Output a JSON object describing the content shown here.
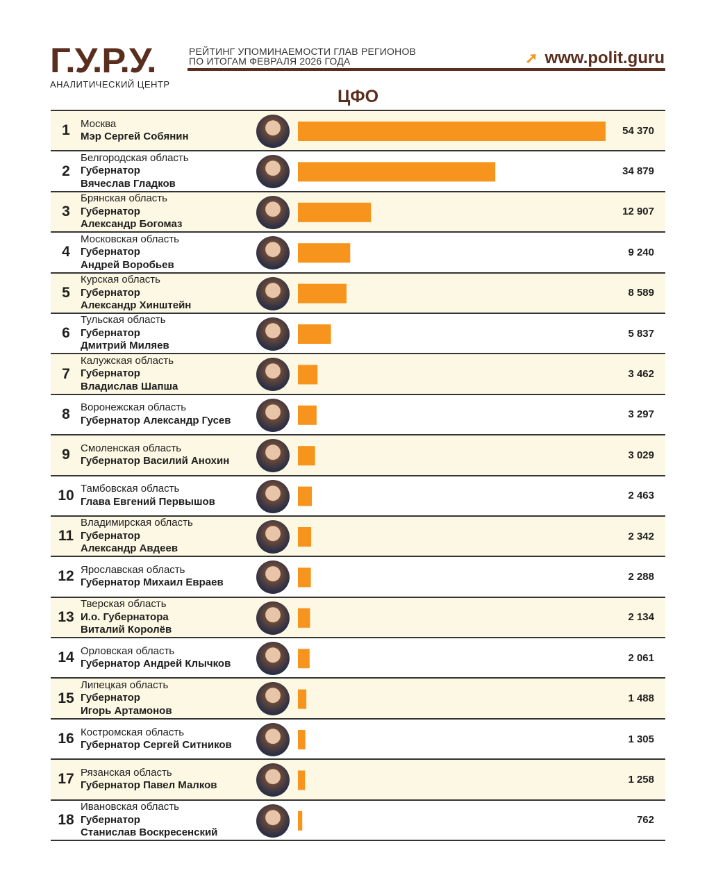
{
  "header": {
    "logo": "Г.У.Р.У.",
    "logo_sub": "АНАЛИТИЧЕСКИЙ ЦЕНТР",
    "subtitle_1": "РЕЙТИНГ УПОМИНАЕМОСТИ ГЛАВ РЕГИОНОВ",
    "subtitle_2": "ПО ИТОГАМ ФЕВРАЛЯ 2026 ГОДА",
    "site": "www.polit.guru",
    "region": "ЦФО"
  },
  "colors": {
    "bar": "#f7941d",
    "brand": "#5a2e1e",
    "stripe": "#fdf8e3"
  },
  "rows": [
    {
      "rank": "1",
      "region": "Москва",
      "lines": [
        "Мэр Сергей Собянин"
      ],
      "value": "54 370"
    },
    {
      "rank": "2",
      "region": "Белгородская область",
      "lines": [
        "Губернатор",
        "Вячеслав Гладков"
      ],
      "value": "34 879"
    },
    {
      "rank": "3",
      "region": "Брянская область",
      "lines": [
        "Губернатор",
        "Александр Богомаз"
      ],
      "value": "12 907"
    },
    {
      "rank": "4",
      "region": "Московская область",
      "lines": [
        "Губернатор",
        "Андрей Воробьев"
      ],
      "value": "9 240"
    },
    {
      "rank": "5",
      "region": "Курская область",
      "lines": [
        "Губернатор",
        "Александр Хинштейн"
      ],
      "value": "8 589"
    },
    {
      "rank": "6",
      "region": "Тульская область",
      "lines": [
        "Губернатор",
        "Дмитрий Миляев"
      ],
      "value": "5 837"
    },
    {
      "rank": "7",
      "region": "Калужская область",
      "lines": [
        "Губернатор",
        "Владислав Шапша"
      ],
      "value": "3 462"
    },
    {
      "rank": "8",
      "region": "Воронежская область",
      "lines": [
        "Губернатор Александр Гусев"
      ],
      "value": "3 297"
    },
    {
      "rank": "9",
      "region": "Смоленская область",
      "lines": [
        "Губернатор Василий Анохин"
      ],
      "value": "3 029"
    },
    {
      "rank": "10",
      "region": "Тамбовская область",
      "lines": [
        "Глава Евгений Первышов"
      ],
      "value": "2 463"
    },
    {
      "rank": "11",
      "region": "Владимирская область",
      "lines": [
        "Губернатор",
        "Александр Авдеев"
      ],
      "value": "2 342"
    },
    {
      "rank": "12",
      "region": "Ярославская область",
      "lines": [
        "Губернатор Михаил Евраев"
      ],
      "value": "2 288"
    },
    {
      "rank": "13",
      "region": "Тверская область",
      "lines": [
        "И.о. Губернатора",
        "Виталий Королёв"
      ],
      "value": "2 134"
    },
    {
      "rank": "14",
      "region": "Орловская область",
      "lines": [
        "Губернатор Андрей Клычков"
      ],
      "value": "2 061"
    },
    {
      "rank": "15",
      "region": "Липецкая область",
      "lines": [
        "Губернатор",
        "Игорь Артамонов"
      ],
      "value": "1 488"
    },
    {
      "rank": "16",
      "region": "Костромская область",
      "lines": [
        "Губернатор Сергей Ситников"
      ],
      "value": "1 305"
    },
    {
      "rank": "17",
      "region": "Рязанская область",
      "lines": [
        "Губернатор Павел Малков"
      ],
      "value": "1 258"
    },
    {
      "rank": "18",
      "region": "Ивановская область",
      "lines": [
        "Губернатор",
        "Станислав Воскресенский"
      ],
      "value": "762"
    }
  ],
  "chart_data": {
    "type": "bar",
    "orientation": "horizontal",
    "title": "ЦФО",
    "categories": [
      "Москва",
      "Белгородская область",
      "Брянская область",
      "Московская область",
      "Курская область",
      "Тульская область",
      "Калужская область",
      "Воронежская область",
      "Смоленская область",
      "Тамбовская область",
      "Владимирская область",
      "Ярославская область",
      "Тверская область",
      "Орловская область",
      "Липецкая область",
      "Костромская область",
      "Рязанская область",
      "Ивановская область"
    ],
    "values": [
      54370,
      34879,
      12907,
      9240,
      8589,
      5837,
      3462,
      3297,
      3029,
      2463,
      2342,
      2288,
      2134,
      2061,
      1488,
      1305,
      1258,
      762
    ],
    "xlim": [
      0,
      54370
    ]
  }
}
